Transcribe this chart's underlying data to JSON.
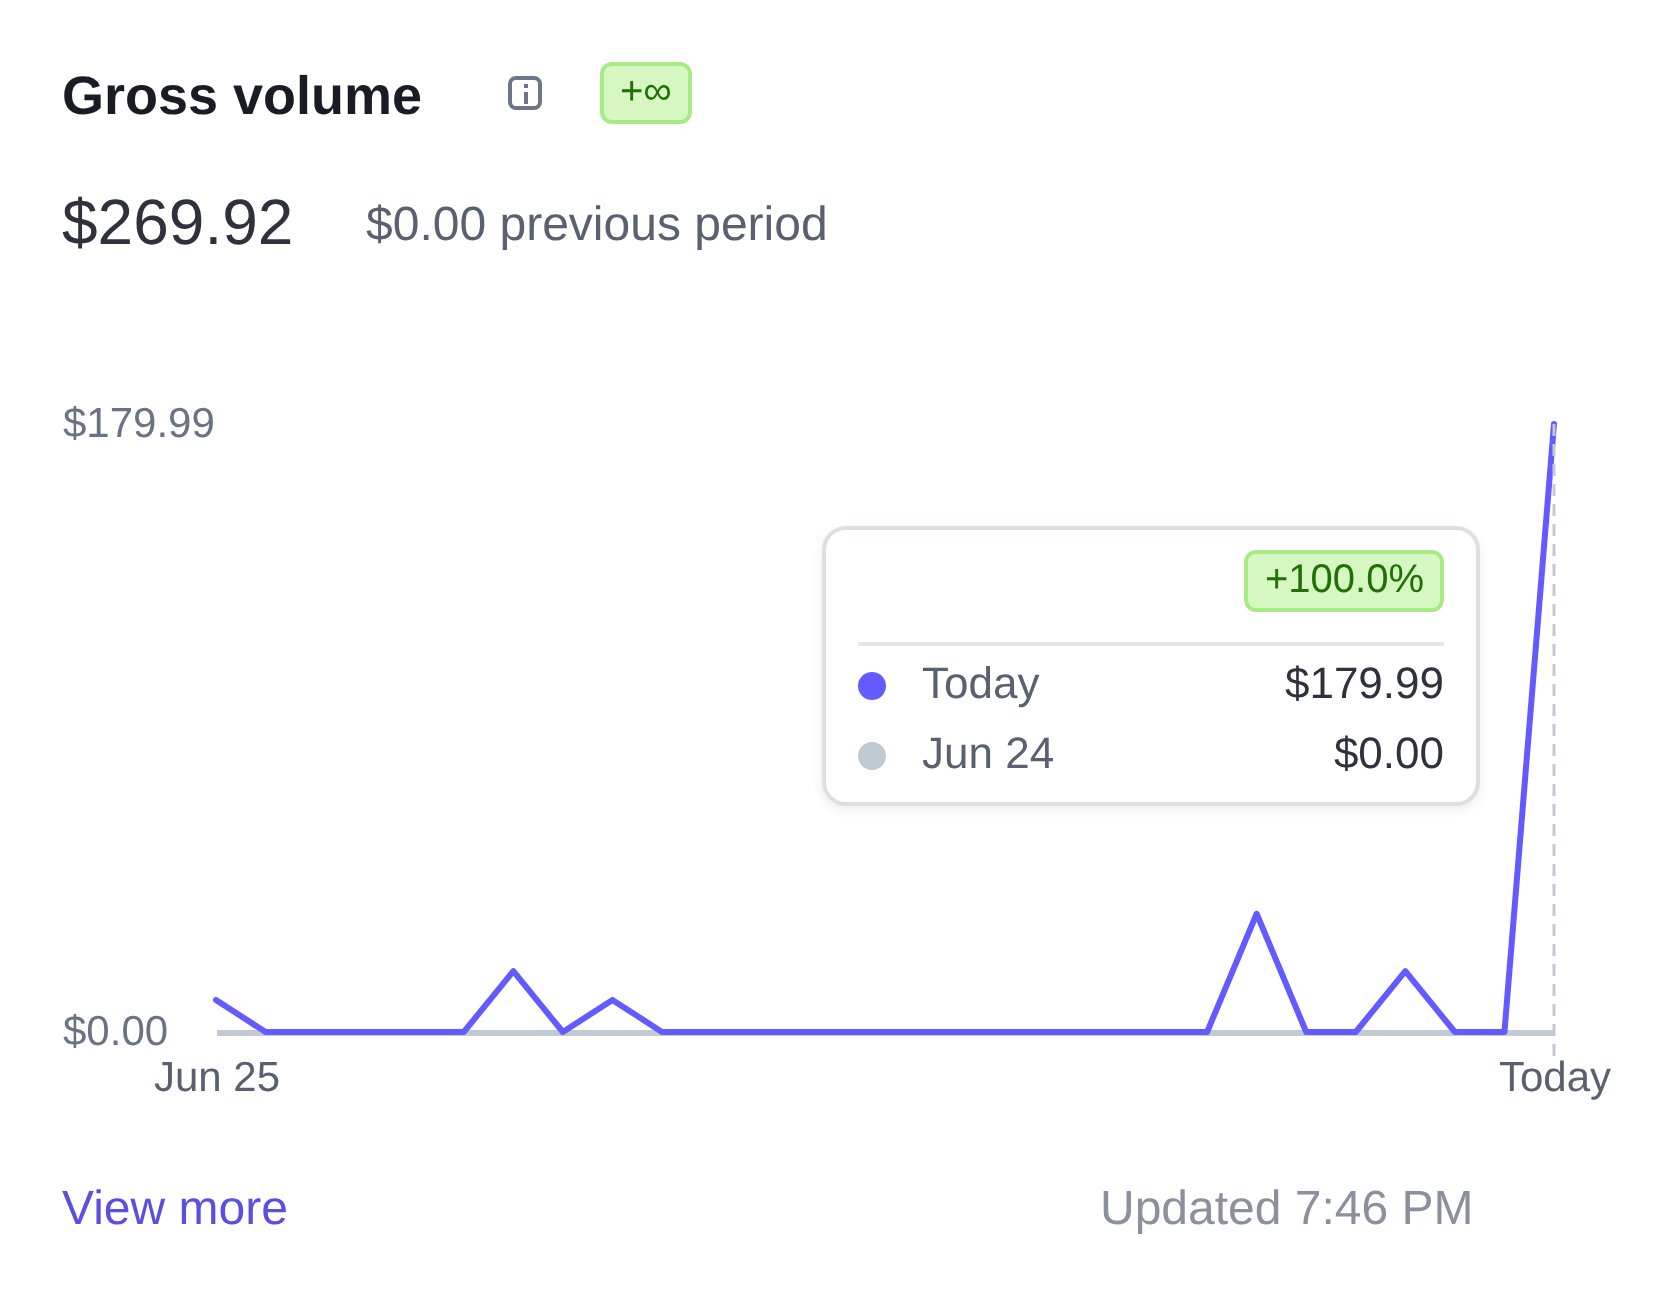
{
  "chart_data": {
    "type": "line",
    "title": "Gross volume",
    "categories": [
      "Jun 25",
      null,
      null,
      null,
      null,
      null,
      null,
      null,
      null,
      null,
      null,
      null,
      null,
      null,
      null,
      null,
      null,
      null,
      null,
      null,
      null,
      null,
      null,
      null,
      null,
      null,
      null,
      "Today"
    ],
    "series": [
      {
        "color": "#635bff",
        "values": [
          9.5,
          0,
          0,
          0,
          0,
          0,
          18,
          0,
          9.5,
          0,
          0,
          0,
          0,
          0,
          0,
          0,
          0,
          0,
          0,
          0,
          0,
          35,
          0,
          0,
          18,
          0,
          0,
          179.99
        ]
      }
    ],
    "ylim": [
      0,
      179.99
    ],
    "yticks": [
      {
        "value": 0,
        "label": "$0.00"
      },
      {
        "value": 179.99,
        "label": "$179.99"
      }
    ],
    "ref_lines": [
      {
        "axis": "x",
        "value": "Today",
        "color": "#c1c9d2",
        "line_style": "dashed"
      }
    ],
    "grid": false,
    "marker": "none",
    "line_style": "solid",
    "annotations": [
      "+∞",
      "$269.92",
      "$0.00 previous period",
      "+100.0%",
      "Today",
      "$179.99",
      "Jun 24",
      "$0.00",
      "View more",
      "Updated 7:46 PM"
    ]
  }
}
